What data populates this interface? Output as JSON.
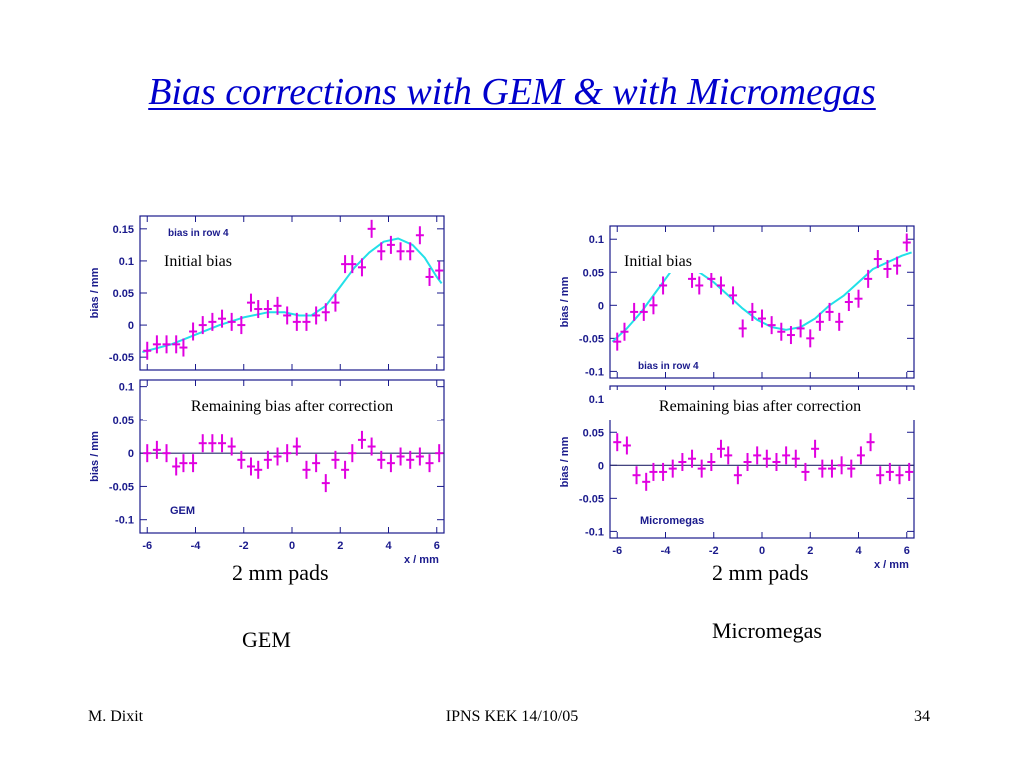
{
  "slide": {
    "title": "Bias corrections with GEM & with Micromegas",
    "left_caption_1": "2 mm pads",
    "left_caption_2": "GEM",
    "right_caption_1": "2 mm pads",
    "right_caption_2": "Micromegas",
    "footer_left": "M. Dixit",
    "footer_center": "IPNS KEK 14/10/05",
    "footer_right": "34"
  },
  "colors": {
    "title": "#0000cc",
    "points": "#e000e0",
    "fit": "#22e0e8",
    "axis": "#1a1a8c"
  },
  "chart_data": [
    {
      "id": "gem",
      "type": "scatter",
      "xlabel": "x / mm",
      "xlim": [
        -6.3,
        6.3
      ],
      "xticks": [
        -6,
        -4,
        -2,
        0,
        2,
        4,
        6
      ],
      "top": {
        "title": "bias in row 4",
        "annotation": "Initial bias",
        "ylabel": "bias / mm",
        "ylim": [
          -0.07,
          0.17
        ],
        "yticks": [
          -0.05,
          0,
          0.05,
          0.1,
          0.15
        ],
        "ytick_labels": [
          "-0.05",
          "0",
          "0.05",
          "0.1",
          "0.15"
        ],
        "x": [
          -6.0,
          -5.6,
          -5.2,
          -4.8,
          -4.5,
          -4.1,
          -3.7,
          -3.3,
          -2.9,
          -2.5,
          -2.1,
          -1.7,
          -1.4,
          -1.0,
          -0.6,
          -0.2,
          0.2,
          0.6,
          1.0,
          1.4,
          1.8,
          2.2,
          2.5,
          2.9,
          3.3,
          3.7,
          4.1,
          4.5,
          4.9,
          5.3,
          5.7,
          6.1
        ],
        "y": [
          -0.04,
          -0.03,
          -0.03,
          -0.03,
          -0.035,
          -0.01,
          0.0,
          0.005,
          0.01,
          0.005,
          0.0,
          0.035,
          0.025,
          0.025,
          0.03,
          0.015,
          0.005,
          0.005,
          0.015,
          0.02,
          0.035,
          0.095,
          0.095,
          0.09,
          0.15,
          0.115,
          0.125,
          0.115,
          0.115,
          0.14,
          0.075,
          0.085
        ],
        "fit_x": [
          -6.2,
          -5,
          -4,
          -3,
          -2,
          -1,
          -0.3,
          0.3,
          0.8,
          1.4,
          2.0,
          2.6,
          3.2,
          3.8,
          4.4,
          5.0,
          5.5,
          6.0,
          6.2
        ],
        "fit_y": [
          -0.042,
          -0.03,
          -0.015,
          0.0,
          0.012,
          0.02,
          0.02,
          0.015,
          0.015,
          0.03,
          0.06,
          0.09,
          0.113,
          0.13,
          0.135,
          0.125,
          0.105,
          0.075,
          0.065
        ]
      },
      "bottom": {
        "annotation": "Remaining bias after correction",
        "label": "GEM",
        "ylabel": "bias / mm",
        "ylim": [
          -0.12,
          0.11
        ],
        "yticks": [
          -0.1,
          -0.05,
          0,
          0.05,
          0.1
        ],
        "ytick_labels": [
          "-0.1",
          "-0.05",
          "0",
          "0.05",
          "0.1"
        ],
        "x": [
          -6.0,
          -5.6,
          -5.2,
          -4.8,
          -4.5,
          -4.1,
          -3.7,
          -3.3,
          -2.9,
          -2.5,
          -2.1,
          -1.7,
          -1.4,
          -1.0,
          -0.6,
          -0.2,
          0.2,
          0.6,
          1.0,
          1.4,
          1.8,
          2.2,
          2.5,
          2.9,
          3.3,
          3.7,
          4.1,
          4.5,
          4.9,
          5.3,
          5.7,
          6.1
        ],
        "y": [
          0.0,
          0.005,
          0.0,
          -0.02,
          -0.015,
          -0.015,
          0.015,
          0.015,
          0.015,
          0.01,
          -0.01,
          -0.02,
          -0.025,
          -0.01,
          -0.005,
          0.0,
          0.01,
          -0.025,
          -0.015,
          -0.045,
          -0.01,
          -0.025,
          0.0,
          0.02,
          0.01,
          -0.01,
          -0.015,
          -0.005,
          -0.01,
          -0.005,
          -0.015,
          0.0
        ]
      }
    },
    {
      "id": "micromegas",
      "type": "scatter",
      "xlabel": "x / mm",
      "xlim": [
        -6.3,
        6.3
      ],
      "xticks": [
        -6,
        -4,
        -2,
        0,
        2,
        4,
        6
      ],
      "top": {
        "title": "bias in row 4",
        "annotation": "Initial bias",
        "ylabel": "bias / mm",
        "ylim": [
          -0.11,
          0.12
        ],
        "yticks": [
          -0.1,
          -0.05,
          0,
          0.05,
          0.1
        ],
        "ytick_labels": [
          "-0.1",
          "-0.05",
          "0",
          "0.05",
          "0.1"
        ],
        "x": [
          -6.0,
          -5.7,
          -5.3,
          -4.9,
          -4.5,
          -4.1,
          -2.9,
          -2.6,
          -2.1,
          -1.7,
          -1.2,
          -0.8,
          -0.4,
          0.0,
          0.4,
          0.8,
          1.2,
          1.6,
          2.0,
          2.4,
          2.8,
          3.2,
          3.6,
          4.0,
          4.4,
          4.8,
          5.2,
          5.6,
          6.0
        ],
        "y": [
          -0.055,
          -0.04,
          -0.01,
          -0.01,
          0.0,
          0.03,
          0.04,
          0.03,
          0.04,
          0.03,
          0.015,
          -0.035,
          -0.01,
          -0.02,
          -0.03,
          -0.04,
          -0.045,
          -0.035,
          -0.05,
          -0.025,
          -0.01,
          -0.025,
          0.005,
          0.01,
          0.04,
          0.07,
          0.055,
          0.06,
          0.095
        ],
        "fit_x": [
          -6.2,
          -5.6,
          -5.0,
          -4.4,
          -3.8,
          -3.3,
          -2.6,
          -2.0,
          -1.4,
          -0.8,
          -0.2,
          0.4,
          1.0,
          1.6,
          2.2,
          2.8,
          3.4,
          4.0,
          4.6,
          5.2,
          5.8,
          6.2
        ],
        "fit_y": [
          -0.055,
          -0.035,
          -0.01,
          0.02,
          0.05,
          0.06,
          0.05,
          0.035,
          0.015,
          -0.005,
          -0.022,
          -0.033,
          -0.037,
          -0.033,
          -0.02,
          0.0,
          0.015,
          0.035,
          0.055,
          0.065,
          0.075,
          0.08
        ]
      },
      "bottom": {
        "annotation": "Remaining bias after correction",
        "label": "Micromegas",
        "ylabel": "bias / mm",
        "ylim": [
          -0.11,
          0.12
        ],
        "yticks": [
          -0.1,
          -0.05,
          0,
          0.05,
          0.1
        ],
        "ytick_labels": [
          "-0.1",
          "-0.05",
          "0",
          "0.05",
          "0.1"
        ],
        "x": [
          -6.0,
          -5.6,
          -5.2,
          -4.8,
          -4.5,
          -4.1,
          -3.7,
          -3.3,
          -2.9,
          -2.5,
          -2.1,
          -1.7,
          -1.4,
          -1.0,
          -0.6,
          -0.2,
          0.2,
          0.6,
          1.0,
          1.4,
          1.8,
          2.2,
          2.5,
          2.9,
          3.3,
          3.7,
          4.1,
          4.5,
          4.9,
          5.3,
          5.7,
          6.1
        ],
        "y": [
          0.035,
          0.03,
          -0.015,
          -0.025,
          -0.01,
          -0.01,
          -0.005,
          0.005,
          0.01,
          -0.005,
          0.005,
          0.025,
          0.015,
          -0.015,
          0.005,
          0.015,
          0.01,
          0.005,
          0.015,
          0.01,
          -0.01,
          0.025,
          -0.005,
          -0.005,
          0.0,
          -0.005,
          0.015,
          0.035,
          -0.015,
          -0.01,
          -0.015,
          -0.01
        ]
      }
    }
  ]
}
